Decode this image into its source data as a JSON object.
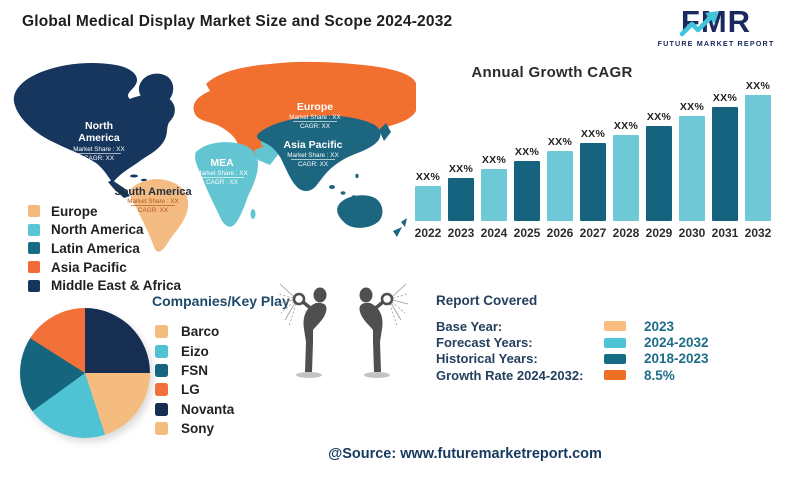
{
  "title": "Global Medical Display Market Size and Scope 2024-2032",
  "logo": {
    "name": "FMR",
    "tagline": "FUTURE MARKET REPORT",
    "brand_navy": "#1b2a5e",
    "brand_teal": "#3fc6dc"
  },
  "map": {
    "regions": {
      "north_america": {
        "name_line1": "North",
        "name_line2": "America",
        "market_share": "Market Share : XX",
        "cagr": "CAGR: XX"
      },
      "south_america": {
        "name": "South America",
        "market_share": "Market Share : XX",
        "cagr": "CAGR: XX"
      },
      "europe": {
        "name": "Europe",
        "market_share": "Market Share : XX",
        "cagr": "CAGR: XX"
      },
      "mea": {
        "name": "MEA",
        "market_share": "Market Share : XX",
        "cagr": "CAGR : XX"
      },
      "asia_pacific": {
        "name": "Asia Pacific",
        "market_share": "Market Share : XX",
        "cagr": "CAGR: XX"
      }
    },
    "region_colors": {
      "north_america": "#17365d",
      "south_america": "#f4bc82",
      "europe": "#f2702f",
      "mea": "#63c5d2",
      "asia_pacific": "#1d6680"
    }
  },
  "region_legend": {
    "items": [
      {
        "label": "Europe",
        "color": "#f5b97e"
      },
      {
        "label": "North America",
        "color": "#58c4d4"
      },
      {
        "label": "Latin America",
        "color": "#176c84"
      },
      {
        "label": "Asia Pacific",
        "color": "#f26a35"
      },
      {
        "label": "Middle East & Africa",
        "color": "#16355d"
      }
    ]
  },
  "chart_data": [
    {
      "type": "bar",
      "title": "Annual Growth CAGR",
      "categories": [
        "2022",
        "2023",
        "2024",
        "2025",
        "2026",
        "2027",
        "2028",
        "2029",
        "2030",
        "2031",
        "2032"
      ],
      "values": [
        35,
        43,
        52,
        60,
        70,
        78,
        86,
        95,
        105,
        114,
        126
      ],
      "value_labels": [
        "XX%",
        "XX%",
        "XX%",
        "XX%",
        "XX%",
        "XX%",
        "XX%",
        "XX%",
        "XX%",
        "XX%",
        "XX%"
      ],
      "values_note": "bar heights are relative units estimated from pixels; data labels are XX% placeholders",
      "bar_color_light": "#6ec8d6",
      "bar_color_dark": "#15637f",
      "xlabel": "",
      "ylabel": "",
      "ylim": [
        0,
        130
      ],
      "grid": false,
      "legend": "none"
    },
    {
      "type": "pie",
      "title": "Companies/Key Play",
      "segments": [
        {
          "label": "Novanta",
          "value": 25,
          "color": "#152e52"
        },
        {
          "label": "Barco",
          "value": 20,
          "color": "#f5bc80"
        },
        {
          "label": "Eizo",
          "value": 20,
          "color": "#4fc3d4"
        },
        {
          "label": "FSN",
          "value": 19,
          "color": "#16657f"
        },
        {
          "label": "LG",
          "value": 16,
          "color": "#f2703a"
        }
      ],
      "note": "slice shares estimated from angles; Sony shares the peach color with Barco in the legend"
    }
  ],
  "companies": {
    "heading": "Companies/Key Play",
    "items": [
      {
        "name": "Barco",
        "color": "#f5bc80"
      },
      {
        "name": "Eizo",
        "color": "#4fc3d4"
      },
      {
        "name": "FSN",
        "color": "#16657f"
      },
      {
        "name": "LG",
        "color": "#f2703a"
      },
      {
        "name": "Novanta",
        "color": "#152e52"
      },
      {
        "name": "Sony",
        "color": "#f5bc80"
      }
    ]
  },
  "report_covered": {
    "heading": "Report Covered",
    "rows": [
      {
        "label": "Base Year:",
        "value": "2023",
        "color": "#f9bd7d"
      },
      {
        "label": "Forecast Years:",
        "value": "2024-2032",
        "color": "#4ec3d4"
      },
      {
        "label": "Historical Years:",
        "value": "2018-2023",
        "color": "#176c84"
      },
      {
        "label": "Growth Rate 2024-2032:",
        "value": "8.5%",
        "color": "#ee7025"
      }
    ]
  },
  "source": "@Source: www.futuremarketreport.com"
}
